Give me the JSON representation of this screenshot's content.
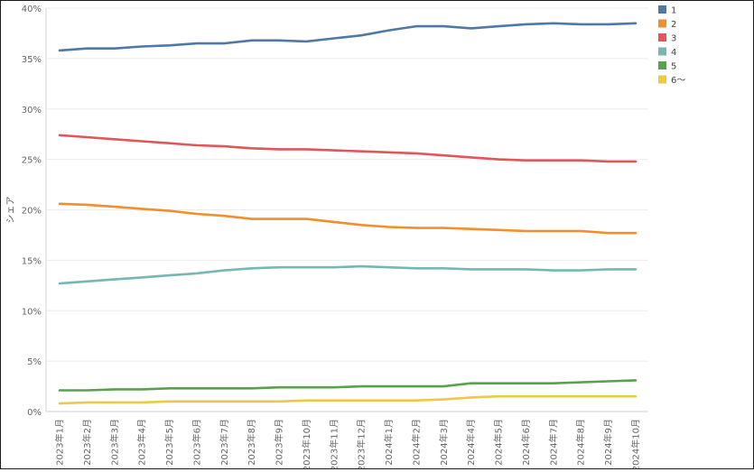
{
  "chart_data": {
    "type": "line",
    "ylabel": "シェア",
    "y_ticks": [
      "0%",
      "5%",
      "10%",
      "15%",
      "20%",
      "25%",
      "30%",
      "35%",
      "40%"
    ],
    "ylim": [
      0,
      40
    ],
    "grid": true,
    "legend_position": "top-right",
    "categories": [
      "2023年1月",
      "2023年2月",
      "2023年3月",
      "2023年4月",
      "2023年5月",
      "2023年6月",
      "2023年7月",
      "2023年8月",
      "2023年9月",
      "2023年10月",
      "2023年11月",
      "2023年12月",
      "2024年1月",
      "2024年2月",
      "2024年3月",
      "2024年4月",
      "2024年5月",
      "2024年6月",
      "2024年7月",
      "2024年8月",
      "2024年9月",
      "2024年10月"
    ],
    "series": [
      {
        "name": "1",
        "color": "#4e79a7",
        "values": [
          35.8,
          36.0,
          36.0,
          36.2,
          36.3,
          36.5,
          36.5,
          36.8,
          36.8,
          36.7,
          37.0,
          37.3,
          37.8,
          38.2,
          38.2,
          38.0,
          38.2,
          38.4,
          38.5,
          38.4,
          38.4,
          38.5
        ]
      },
      {
        "name": "2",
        "color": "#f28e2b",
        "values": [
          20.6,
          20.5,
          20.3,
          20.1,
          19.9,
          19.6,
          19.4,
          19.1,
          19.1,
          19.1,
          18.8,
          18.5,
          18.3,
          18.2,
          18.2,
          18.1,
          18.0,
          17.9,
          17.9,
          17.9,
          17.7,
          17.7
        ]
      },
      {
        "name": "3",
        "color": "#e15759",
        "values": [
          27.4,
          27.2,
          27.0,
          26.8,
          26.6,
          26.4,
          26.3,
          26.1,
          26.0,
          26.0,
          25.9,
          25.8,
          25.7,
          25.6,
          25.4,
          25.2,
          25.0,
          24.9,
          24.9,
          24.9,
          24.8,
          24.8
        ]
      },
      {
        "name": "4",
        "color": "#76b7b2",
        "values": [
          12.7,
          12.9,
          13.1,
          13.3,
          13.5,
          13.7,
          14.0,
          14.2,
          14.3,
          14.3,
          14.3,
          14.4,
          14.3,
          14.2,
          14.2,
          14.1,
          14.1,
          14.1,
          14.0,
          14.0,
          14.1,
          14.1
        ]
      },
      {
        "name": "5",
        "color": "#59a14f",
        "values": [
          2.1,
          2.1,
          2.2,
          2.2,
          2.3,
          2.3,
          2.3,
          2.3,
          2.4,
          2.4,
          2.4,
          2.5,
          2.5,
          2.5,
          2.5,
          2.8,
          2.8,
          2.8,
          2.8,
          2.9,
          3.0,
          3.1
        ]
      },
      {
        "name": "6～",
        "color": "#edc948",
        "values": [
          0.8,
          0.9,
          0.9,
          0.9,
          1.0,
          1.0,
          1.0,
          1.0,
          1.0,
          1.1,
          1.1,
          1.1,
          1.1,
          1.1,
          1.2,
          1.4,
          1.5,
          1.5,
          1.5,
          1.5,
          1.5,
          1.5
        ]
      }
    ]
  }
}
